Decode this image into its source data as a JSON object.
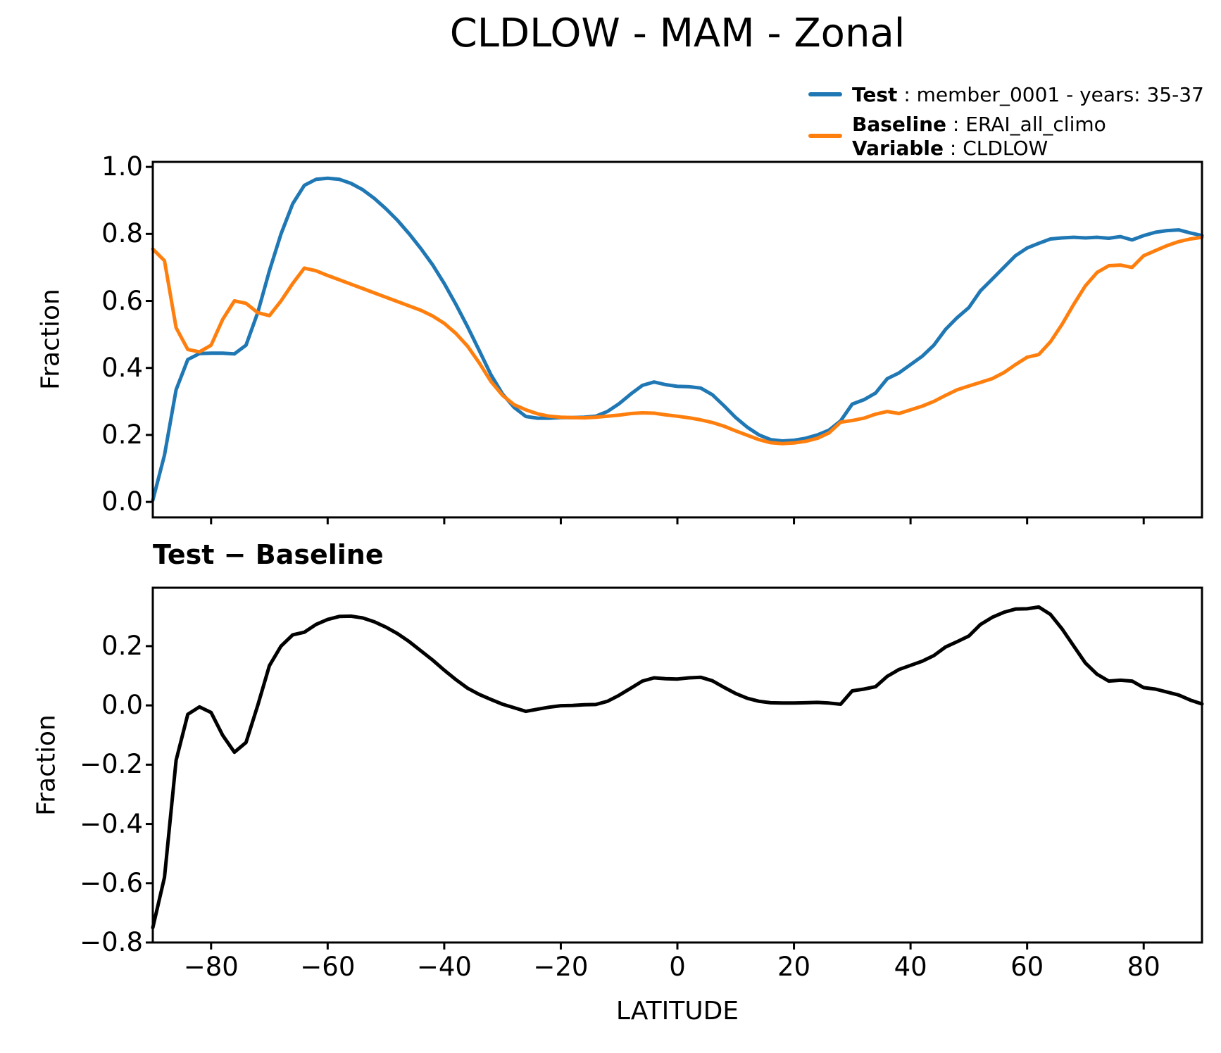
{
  "title": "CLDLOW - MAM - Zonal",
  "legend": {
    "entries": [
      {
        "label": "Test",
        "value": " : member_0001 - years: 35-37",
        "color": "#1f77b4"
      },
      {
        "label": "Baseline",
        "value": " : ERAI_all_climo",
        "color": "#ff7f0e"
      },
      {
        "label": "Variable",
        "value": " : CLDLOW",
        "color": "#ff7f0e"
      }
    ]
  },
  "colors": {
    "test": "#1f77b4",
    "baseline": "#ff7f0e",
    "difference": "#000000",
    "axes": "#000000"
  },
  "chart_data": [
    {
      "type": "line",
      "title": "",
      "xlabel": "",
      "ylabel": "Fraction",
      "xlim": [
        -90,
        90
      ],
      "ylim": [
        -0.046,
        1.015
      ],
      "xticks": [
        -80,
        -60,
        -40,
        -20,
        0,
        20,
        40,
        60,
        80
      ],
      "show_x_tick_labels": false,
      "yticks": [
        0,
        0.2,
        0.4,
        0.6,
        0.8,
        1
      ],
      "grid": false,
      "legend_position": "upper right outside",
      "x": [
        -90,
        -88,
        -86,
        -84,
        -82,
        -80,
        -78,
        -76,
        -74,
        -72,
        -70,
        -68,
        -66,
        -64,
        -62,
        -60,
        -58,
        -56,
        -54,
        -52,
        -50,
        -48,
        -46,
        -44,
        -42,
        -40,
        -38,
        -36,
        -34,
        -32,
        -30,
        -28,
        -26,
        -24,
        -22,
        -20,
        -18,
        -16,
        -14,
        -12,
        -10,
        -8,
        -6,
        -4,
        -2,
        0,
        2,
        4,
        6,
        8,
        10,
        12,
        14,
        16,
        18,
        20,
        22,
        24,
        26,
        28,
        30,
        32,
        34,
        36,
        38,
        40,
        42,
        44,
        46,
        48,
        50,
        52,
        54,
        56,
        58,
        60,
        62,
        64,
        66,
        68,
        70,
        72,
        74,
        76,
        78,
        80,
        82,
        84,
        86,
        88,
        90
      ],
      "series": [
        {
          "name": "Test",
          "color": "#1f77b4",
          "values": [
            0.005,
            0.14,
            0.335,
            0.425,
            0.443,
            0.444,
            0.444,
            0.442,
            0.468,
            0.565,
            0.69,
            0.8,
            0.89,
            0.945,
            0.963,
            0.966,
            0.963,
            0.951,
            0.932,
            0.906,
            0.875,
            0.84,
            0.8,
            0.756,
            0.708,
            0.652,
            0.59,
            0.523,
            0.452,
            0.38,
            0.322,
            0.282,
            0.255,
            0.25,
            0.25,
            0.252,
            0.252,
            0.253,
            0.256,
            0.27,
            0.293,
            0.322,
            0.348,
            0.358,
            0.35,
            0.345,
            0.344,
            0.34,
            0.32,
            0.287,
            0.252,
            0.223,
            0.2,
            0.186,
            0.182,
            0.184,
            0.19,
            0.2,
            0.214,
            0.242,
            0.292,
            0.305,
            0.325,
            0.368,
            0.385,
            0.41,
            0.435,
            0.468,
            0.515,
            0.55,
            0.58,
            0.63,
            0.665,
            0.7,
            0.735,
            0.758,
            0.772,
            0.785,
            0.788,
            0.79,
            0.788,
            0.79,
            0.787,
            0.792,
            0.782,
            0.795,
            0.805,
            0.81,
            0.812,
            0.803,
            0.795
          ]
        },
        {
          "name": "Baseline",
          "color": "#ff7f0e",
          "values": [
            0.755,
            0.72,
            0.52,
            0.455,
            0.448,
            0.468,
            0.545,
            0.6,
            0.593,
            0.565,
            0.556,
            0.6,
            0.652,
            0.698,
            0.69,
            0.676,
            0.663,
            0.65,
            0.637,
            0.624,
            0.611,
            0.598,
            0.585,
            0.572,
            0.555,
            0.533,
            0.503,
            0.465,
            0.415,
            0.36,
            0.318,
            0.29,
            0.275,
            0.263,
            0.256,
            0.253,
            0.252,
            0.251,
            0.253,
            0.256,
            0.259,
            0.264,
            0.266,
            0.265,
            0.26,
            0.256,
            0.251,
            0.245,
            0.237,
            0.226,
            0.212,
            0.199,
            0.186,
            0.177,
            0.174,
            0.176,
            0.181,
            0.19,
            0.206,
            0.238,
            0.243,
            0.25,
            0.262,
            0.27,
            0.264,
            0.275,
            0.286,
            0.3,
            0.318,
            0.335,
            0.346,
            0.357,
            0.368,
            0.386,
            0.41,
            0.432,
            0.44,
            0.478,
            0.53,
            0.59,
            0.645,
            0.685,
            0.705,
            0.707,
            0.7,
            0.735,
            0.75,
            0.765,
            0.777,
            0.785,
            0.79
          ]
        }
      ]
    },
    {
      "type": "line",
      "title": "Test − Baseline",
      "xlabel": "LATITUDE",
      "ylabel": "Fraction",
      "xlim": [
        -90,
        90
      ],
      "ylim": [
        -0.8,
        0.397
      ],
      "xticks": [
        -80,
        -60,
        -40,
        -20,
        0,
        20,
        40,
        60,
        80
      ],
      "show_x_tick_labels": true,
      "yticks": [
        0.2,
        0,
        -0.2,
        -0.4,
        -0.6,
        -0.8
      ],
      "grid": false,
      "x": [
        -90,
        -88,
        -86,
        -84,
        -82,
        -80,
        -78,
        -76,
        -74,
        -72,
        -70,
        -68,
        -66,
        -64,
        -62,
        -60,
        -58,
        -56,
        -54,
        -52,
        -50,
        -48,
        -46,
        -44,
        -42,
        -40,
        -38,
        -36,
        -34,
        -32,
        -30,
        -28,
        -26,
        -24,
        -22,
        -20,
        -18,
        -16,
        -14,
        -12,
        -10,
        -8,
        -6,
        -4,
        -2,
        0,
        2,
        4,
        6,
        8,
        10,
        12,
        14,
        16,
        18,
        20,
        22,
        24,
        26,
        28,
        30,
        32,
        34,
        36,
        38,
        40,
        42,
        44,
        46,
        48,
        50,
        52,
        54,
        56,
        58,
        60,
        62,
        64,
        66,
        68,
        70,
        72,
        74,
        76,
        78,
        80,
        82,
        84,
        86,
        88,
        90
      ],
      "series": [
        {
          "name": "Test − Baseline",
          "color": "#000000",
          "values": [
            -0.75,
            -0.58,
            -0.185,
            -0.03,
            -0.005,
            -0.024,
            -0.101,
            -0.158,
            -0.125,
            0.0,
            0.134,
            0.2,
            0.238,
            0.247,
            0.273,
            0.29,
            0.3,
            0.301,
            0.295,
            0.282,
            0.264,
            0.242,
            0.215,
            0.184,
            0.153,
            0.119,
            0.087,
            0.058,
            0.037,
            0.02,
            0.004,
            -0.008,
            -0.02,
            -0.013,
            -0.006,
            -0.001,
            0.0,
            0.002,
            0.003,
            0.014,
            0.034,
            0.058,
            0.082,
            0.093,
            0.09,
            0.089,
            0.093,
            0.095,
            0.083,
            0.061,
            0.04,
            0.024,
            0.014,
            0.009,
            0.008,
            0.008,
            0.009,
            0.01,
            0.008,
            0.004,
            0.049,
            0.055,
            0.063,
            0.098,
            0.121,
            0.135,
            0.149,
            0.168,
            0.197,
            0.215,
            0.234,
            0.273,
            0.297,
            0.314,
            0.325,
            0.326,
            0.332,
            0.307,
            0.258,
            0.2,
            0.143,
            0.105,
            0.082,
            0.085,
            0.082,
            0.06,
            0.055,
            0.045,
            0.035,
            0.018,
            0.005
          ]
        }
      ]
    }
  ]
}
